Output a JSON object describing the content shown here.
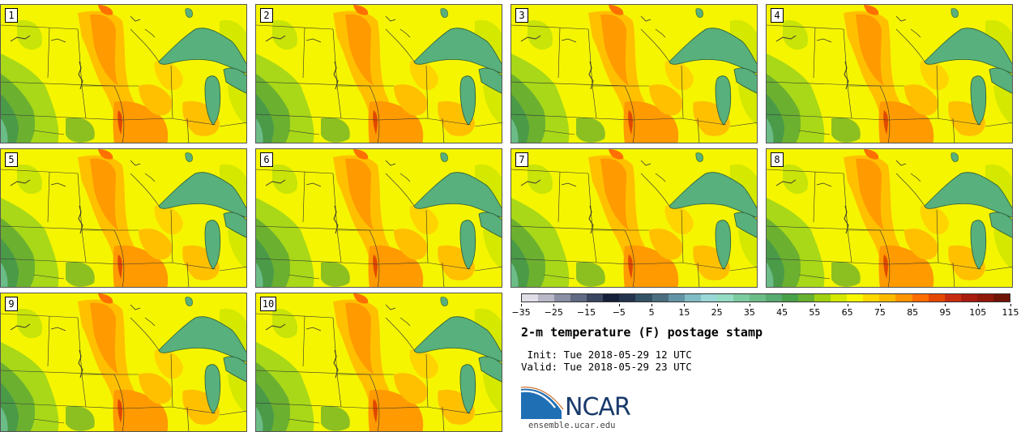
{
  "panels": [
    {
      "label": "1"
    },
    {
      "label": "2"
    },
    {
      "label": "3"
    },
    {
      "label": "4"
    },
    {
      "label": "5"
    },
    {
      "label": "6"
    },
    {
      "label": "7"
    },
    {
      "label": "8"
    },
    {
      "label": "9"
    },
    {
      "label": "10"
    }
  ],
  "colorbar": {
    "colors": [
      "#e0dde6",
      "#b8b8c8",
      "#8a8fa4",
      "#606a82",
      "#3a4560",
      "#15203a",
      "#23344e",
      "#345266",
      "#4a6e80",
      "#6294a6",
      "#80bcc4",
      "#9ad8d8",
      "#94dcc4",
      "#7ccca0",
      "#6cbc88",
      "#58ac70",
      "#48a048",
      "#68b030",
      "#a0d010",
      "#d4e800",
      "#f8f800",
      "#ffd800",
      "#ffba00",
      "#ff9400",
      "#ff6c00",
      "#e44800",
      "#c82c10",
      "#a81c10",
      "#901808",
      "#701408"
    ],
    "tick_labels": [
      "−35",
      "−25",
      "−15",
      "−5",
      "5",
      "15",
      "25",
      "35",
      "45",
      "55",
      "65",
      "75",
      "85",
      "95",
      "105",
      "115"
    ]
  },
  "title": "2-m temperature (F) postage stamp",
  "init_text": " Init: Tue 2018-05-29 12 UTC",
  "valid_text": "Valid: Tue 2018-05-29 23 UTC",
  "logo": {
    "text": "NCAR",
    "color": "#1a3a6b",
    "swoosh_color": "#1f6fb5"
  },
  "site": "ensemble.ucar.edu"
}
